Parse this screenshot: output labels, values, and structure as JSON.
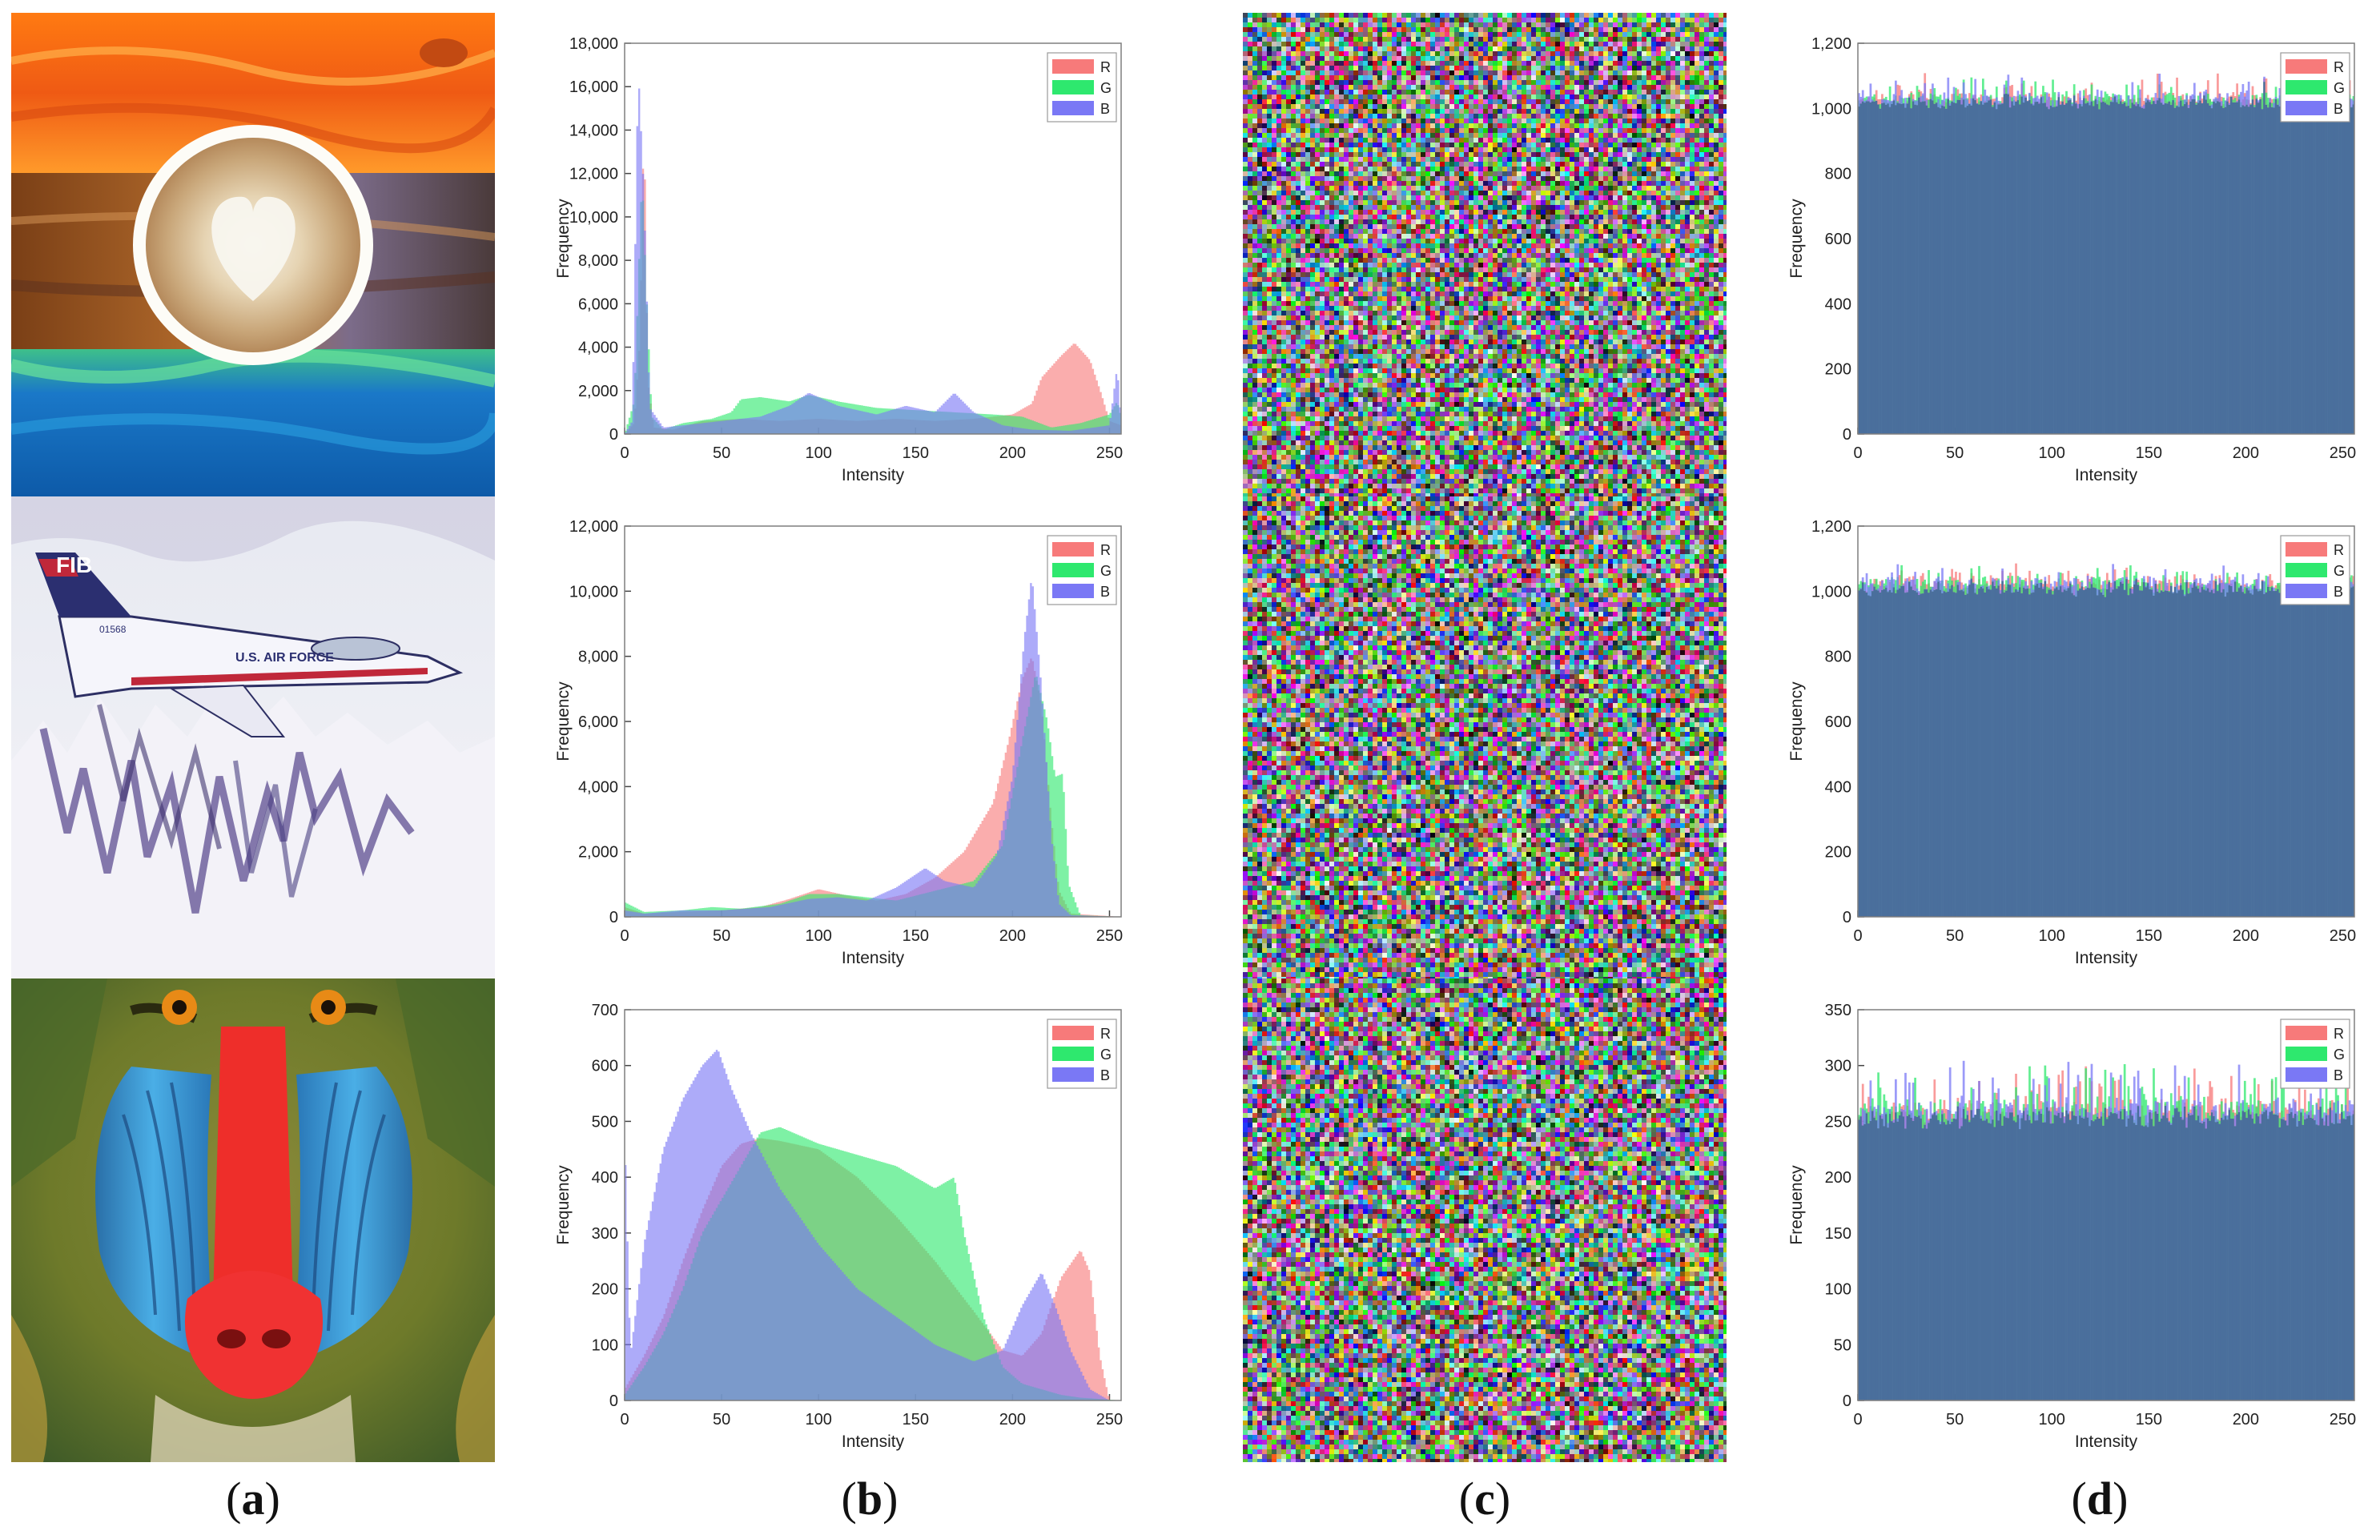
{
  "panel_labels": {
    "a": {
      "open": "(",
      "letter": "a",
      "close": ")"
    },
    "b": {
      "open": "(",
      "letter": "b",
      "close": ")"
    },
    "c": {
      "open": "(",
      "letter": "c",
      "close": ")"
    },
    "d": {
      "open": "(",
      "letter": "d",
      "close": ")"
    }
  },
  "plain_images": [
    {
      "subject": "latte cup on painted wooden table"
    },
    {
      "subject": "fighter jet over snowy mountains",
      "fuselage_text": "U.S. AIR FORCE",
      "tail_text": "FIB",
      "serial_text": "01568"
    },
    {
      "subject": "mandrill face"
    }
  ],
  "cipher_images": [
    {
      "subject": "encrypted noise image 1"
    },
    {
      "subject": "encrypted noise image 2"
    },
    {
      "subject": "encrypted noise image 3"
    }
  ],
  "colors": {
    "R": "#f77a7a",
    "G": "#2ee86e",
    "B": "#7a78f5",
    "overlap": "#4a6f9c",
    "axis": "#7f7f7f"
  },
  "chart_data": [
    {
      "id": "b1",
      "type": "area",
      "xlabel": "Intensity",
      "ylabel": "Frequency",
      "xlim": [
        0,
        256
      ],
      "ylim": [
        0,
        18000
      ],
      "xticks": [
        "0",
        "50",
        "100",
        "150",
        "200",
        "250"
      ],
      "yticks": [
        "0",
        "2,000",
        "4,000",
        "6,000",
        "8,000",
        "10,000",
        "12,000",
        "14,000",
        "16,000",
        "18,000"
      ],
      "legend": [
        "R",
        "G",
        "B"
      ],
      "legend_position": "top-right",
      "series": [
        {
          "name": "R",
          "points": [
            [
              0,
              0
            ],
            [
              5,
              500
            ],
            [
              8,
              4500
            ],
            [
              10,
              14800
            ],
            [
              12,
              2500
            ],
            [
              15,
              300
            ],
            [
              25,
              200
            ],
            [
              40,
              600
            ],
            [
              60,
              700
            ],
            [
              80,
              600
            ],
            [
              100,
              700
            ],
            [
              120,
              600
            ],
            [
              140,
              700
            ],
            [
              160,
              600
            ],
            [
              180,
              700
            ],
            [
              200,
              900
            ],
            [
              210,
              1400
            ],
            [
              215,
              2600
            ],
            [
              225,
              3600
            ],
            [
              232,
              4200
            ],
            [
              240,
              3400
            ],
            [
              246,
              1800
            ],
            [
              250,
              600
            ],
            [
              256,
              400
            ]
          ]
        },
        {
          "name": "G",
          "points": [
            [
              0,
              0
            ],
            [
              5,
              1500
            ],
            [
              9,
              12000
            ],
            [
              11,
              7000
            ],
            [
              14,
              800
            ],
            [
              20,
              200
            ],
            [
              30,
              500
            ],
            [
              45,
              700
            ],
            [
              55,
              1000
            ],
            [
              60,
              1600
            ],
            [
              70,
              1700
            ],
            [
              85,
              1500
            ],
            [
              95,
              1800
            ],
            [
              110,
              1500
            ],
            [
              130,
              1200
            ],
            [
              150,
              1100
            ],
            [
              170,
              1000
            ],
            [
              190,
              900
            ],
            [
              205,
              800
            ],
            [
              220,
              300
            ],
            [
              235,
              500
            ],
            [
              250,
              900
            ],
            [
              254,
              1500
            ],
            [
              256,
              800
            ]
          ]
        },
        {
          "name": "B",
          "points": [
            [
              0,
              0
            ],
            [
              4,
              600
            ],
            [
              7,
              16900
            ],
            [
              10,
              11000
            ],
            [
              13,
              1200
            ],
            [
              20,
              300
            ],
            [
              30,
              400
            ],
            [
              50,
              600
            ],
            [
              70,
              800
            ],
            [
              85,
              1300
            ],
            [
              95,
              1900
            ],
            [
              110,
              1300
            ],
            [
              130,
              900
            ],
            [
              145,
              1300
            ],
            [
              160,
              1000
            ],
            [
              170,
              1900
            ],
            [
              180,
              1000
            ],
            [
              195,
              400
            ],
            [
              210,
              200
            ],
            [
              230,
              150
            ],
            [
              250,
              400
            ],
            [
              254,
              3100
            ],
            [
              256,
              600
            ]
          ]
        }
      ]
    },
    {
      "id": "b2",
      "type": "area",
      "xlabel": "Intensity",
      "ylabel": "Frequency",
      "xlim": [
        0,
        256
      ],
      "ylim": [
        0,
        12000
      ],
      "xticks": [
        "0",
        "50",
        "100",
        "150",
        "200",
        "250"
      ],
      "yticks": [
        "0",
        "2,000",
        "4,000",
        "6,000",
        "8,000",
        "10,000",
        "12,000"
      ],
      "legend": [
        "R",
        "G",
        "B"
      ],
      "legend_position": "top-right",
      "series": [
        {
          "name": "R",
          "points": [
            [
              0,
              300
            ],
            [
              10,
              100
            ],
            [
              30,
              150
            ],
            [
              50,
              200
            ],
            [
              70,
              300
            ],
            [
              85,
              550
            ],
            [
              100,
              850
            ],
            [
              115,
              650
            ],
            [
              130,
              500
            ],
            [
              145,
              700
            ],
            [
              160,
              1200
            ],
            [
              175,
              2000
            ],
            [
              190,
              3500
            ],
            [
              198,
              5400
            ],
            [
              205,
              7300
            ],
            [
              210,
              8000
            ],
            [
              215,
              6500
            ],
            [
              220,
              3000
            ],
            [
              224,
              800
            ],
            [
              230,
              100
            ],
            [
              256,
              0
            ]
          ]
        },
        {
          "name": "G",
          "points": [
            [
              0,
              450
            ],
            [
              10,
              150
            ],
            [
              30,
              200
            ],
            [
              45,
              300
            ],
            [
              60,
              250
            ],
            [
              80,
              400
            ],
            [
              95,
              700
            ],
            [
              110,
              700
            ],
            [
              125,
              600
            ],
            [
              140,
              500
            ],
            [
              160,
              800
            ],
            [
              180,
              1100
            ],
            [
              195,
              2200
            ],
            [
              205,
              5400
            ],
            [
              212,
              7500
            ],
            [
              218,
              6000
            ],
            [
              222,
              4300
            ],
            [
              226,
              4400
            ],
            [
              229,
              1000
            ],
            [
              235,
              50
            ],
            [
              256,
              0
            ]
          ]
        },
        {
          "name": "B",
          "points": [
            [
              0,
              200
            ],
            [
              10,
              100
            ],
            [
              30,
              200
            ],
            [
              50,
              200
            ],
            [
              75,
              300
            ],
            [
              95,
              550
            ],
            [
              110,
              600
            ],
            [
              125,
              500
            ],
            [
              140,
              900
            ],
            [
              155,
              1500
            ],
            [
              165,
              1100
            ],
            [
              180,
              900
            ],
            [
              192,
              1900
            ],
            [
              200,
              4300
            ],
            [
              206,
              8500
            ],
            [
              210,
              10500
            ],
            [
              215,
              7000
            ],
            [
              220,
              2500
            ],
            [
              224,
              400
            ],
            [
              230,
              50
            ],
            [
              256,
              0
            ]
          ]
        }
      ]
    },
    {
      "id": "b3",
      "type": "area",
      "xlabel": "Intensity",
      "ylabel": "Frequency",
      "xlim": [
        0,
        256
      ],
      "ylim": [
        0,
        700
      ],
      "xticks": [
        "0",
        "50",
        "100",
        "150",
        "200",
        "250"
      ],
      "yticks": [
        "0",
        "100",
        "200",
        "300",
        "400",
        "500",
        "600",
        "700"
      ],
      "legend": [
        "R",
        "G",
        "B"
      ],
      "legend_position": "top-right",
      "series": [
        {
          "name": "R",
          "points": [
            [
              0,
              20
            ],
            [
              10,
              80
            ],
            [
              20,
              150
            ],
            [
              30,
              250
            ],
            [
              40,
              340
            ],
            [
              50,
              420
            ],
            [
              60,
              460
            ],
            [
              70,
              470
            ],
            [
              80,
              465
            ],
            [
              100,
              450
            ],
            [
              120,
              400
            ],
            [
              140,
              330
            ],
            [
              160,
              250
            ],
            [
              180,
              160
            ],
            [
              195,
              90
            ],
            [
              205,
              80
            ],
            [
              215,
              120
            ],
            [
              225,
              220
            ],
            [
              235,
              270
            ],
            [
              240,
              230
            ],
            [
              245,
              80
            ],
            [
              250,
              0
            ],
            [
              256,
              0
            ]
          ]
        },
        {
          "name": "G",
          "points": [
            [
              0,
              10
            ],
            [
              10,
              60
            ],
            [
              20,
              120
            ],
            [
              30,
              200
            ],
            [
              40,
              300
            ],
            [
              50,
              360
            ],
            [
              60,
              420
            ],
            [
              70,
              480
            ],
            [
              80,
              490
            ],
            [
              100,
              460
            ],
            [
              120,
              440
            ],
            [
              140,
              420
            ],
            [
              160,
              380
            ],
            [
              170,
              400
            ],
            [
              175,
              300
            ],
            [
              185,
              150
            ],
            [
              195,
              60
            ],
            [
              205,
              30
            ],
            [
              215,
              20
            ],
            [
              225,
              10
            ],
            [
              235,
              5
            ],
            [
              256,
              0
            ]
          ]
        },
        {
          "name": "B",
          "points": [
            [
              0,
              490
            ],
            [
              3,
              80
            ],
            [
              10,
              280
            ],
            [
              20,
              450
            ],
            [
              30,
              540
            ],
            [
              40,
              600
            ],
            [
              48,
              630
            ],
            [
              55,
              560
            ],
            [
              65,
              480
            ],
            [
              80,
              380
            ],
            [
              100,
              280
            ],
            [
              120,
              200
            ],
            [
              140,
              150
            ],
            [
              160,
              100
            ],
            [
              180,
              70
            ],
            [
              195,
              90
            ],
            [
              205,
              170
            ],
            [
              215,
              230
            ],
            [
              222,
              170
            ],
            [
              230,
              90
            ],
            [
              240,
              20
            ],
            [
              250,
              0
            ],
            [
              256,
              0
            ]
          ]
        }
      ]
    },
    {
      "id": "d1",
      "type": "bar",
      "xlabel": "Intensity",
      "ylabel": "Frequency",
      "xlim": [
        0,
        256
      ],
      "ylim": [
        0,
        1200
      ],
      "xticks": [
        "0",
        "50",
        "100",
        "150",
        "200",
        "250"
      ],
      "yticks": [
        "0",
        "200",
        "400",
        "600",
        "800",
        "1,000",
        "1,200"
      ],
      "legend": [
        "R",
        "G",
        "B"
      ],
      "legend_position": "top-right",
      "value_profile": {
        "mean": 1024,
        "min": 960,
        "max": 1110,
        "bins": 256
      }
    },
    {
      "id": "d2",
      "type": "bar",
      "xlabel": "Intensity",
      "ylabel": "Frequency",
      "xlim": [
        0,
        256
      ],
      "ylim": [
        0,
        1200
      ],
      "xticks": [
        "0",
        "50",
        "100",
        "150",
        "200",
        "250"
      ],
      "yticks": [
        "0",
        "200",
        "400",
        "600",
        "800",
        "1,000",
        "1,200"
      ],
      "legend": [
        "R",
        "G",
        "B"
      ],
      "legend_position": "top-right",
      "value_profile": {
        "mean": 1024,
        "min": 930,
        "max": 1100,
        "bins": 256
      }
    },
    {
      "id": "d3",
      "type": "bar",
      "xlabel": "Intensity",
      "ylabel": "Frequency",
      "xlim": [
        0,
        256
      ],
      "ylim": [
        0,
        350
      ],
      "xticks": [
        "0",
        "50",
        "100",
        "150",
        "200",
        "250"
      ],
      "yticks": [
        "0",
        "50",
        "100",
        "150",
        "200",
        "250",
        "300",
        "350"
      ],
      "legend": [
        "R",
        "G",
        "B"
      ],
      "legend_position": "top-right",
      "value_profile": {
        "mean": 256,
        "min": 225,
        "max": 305,
        "bins": 256
      }
    }
  ]
}
